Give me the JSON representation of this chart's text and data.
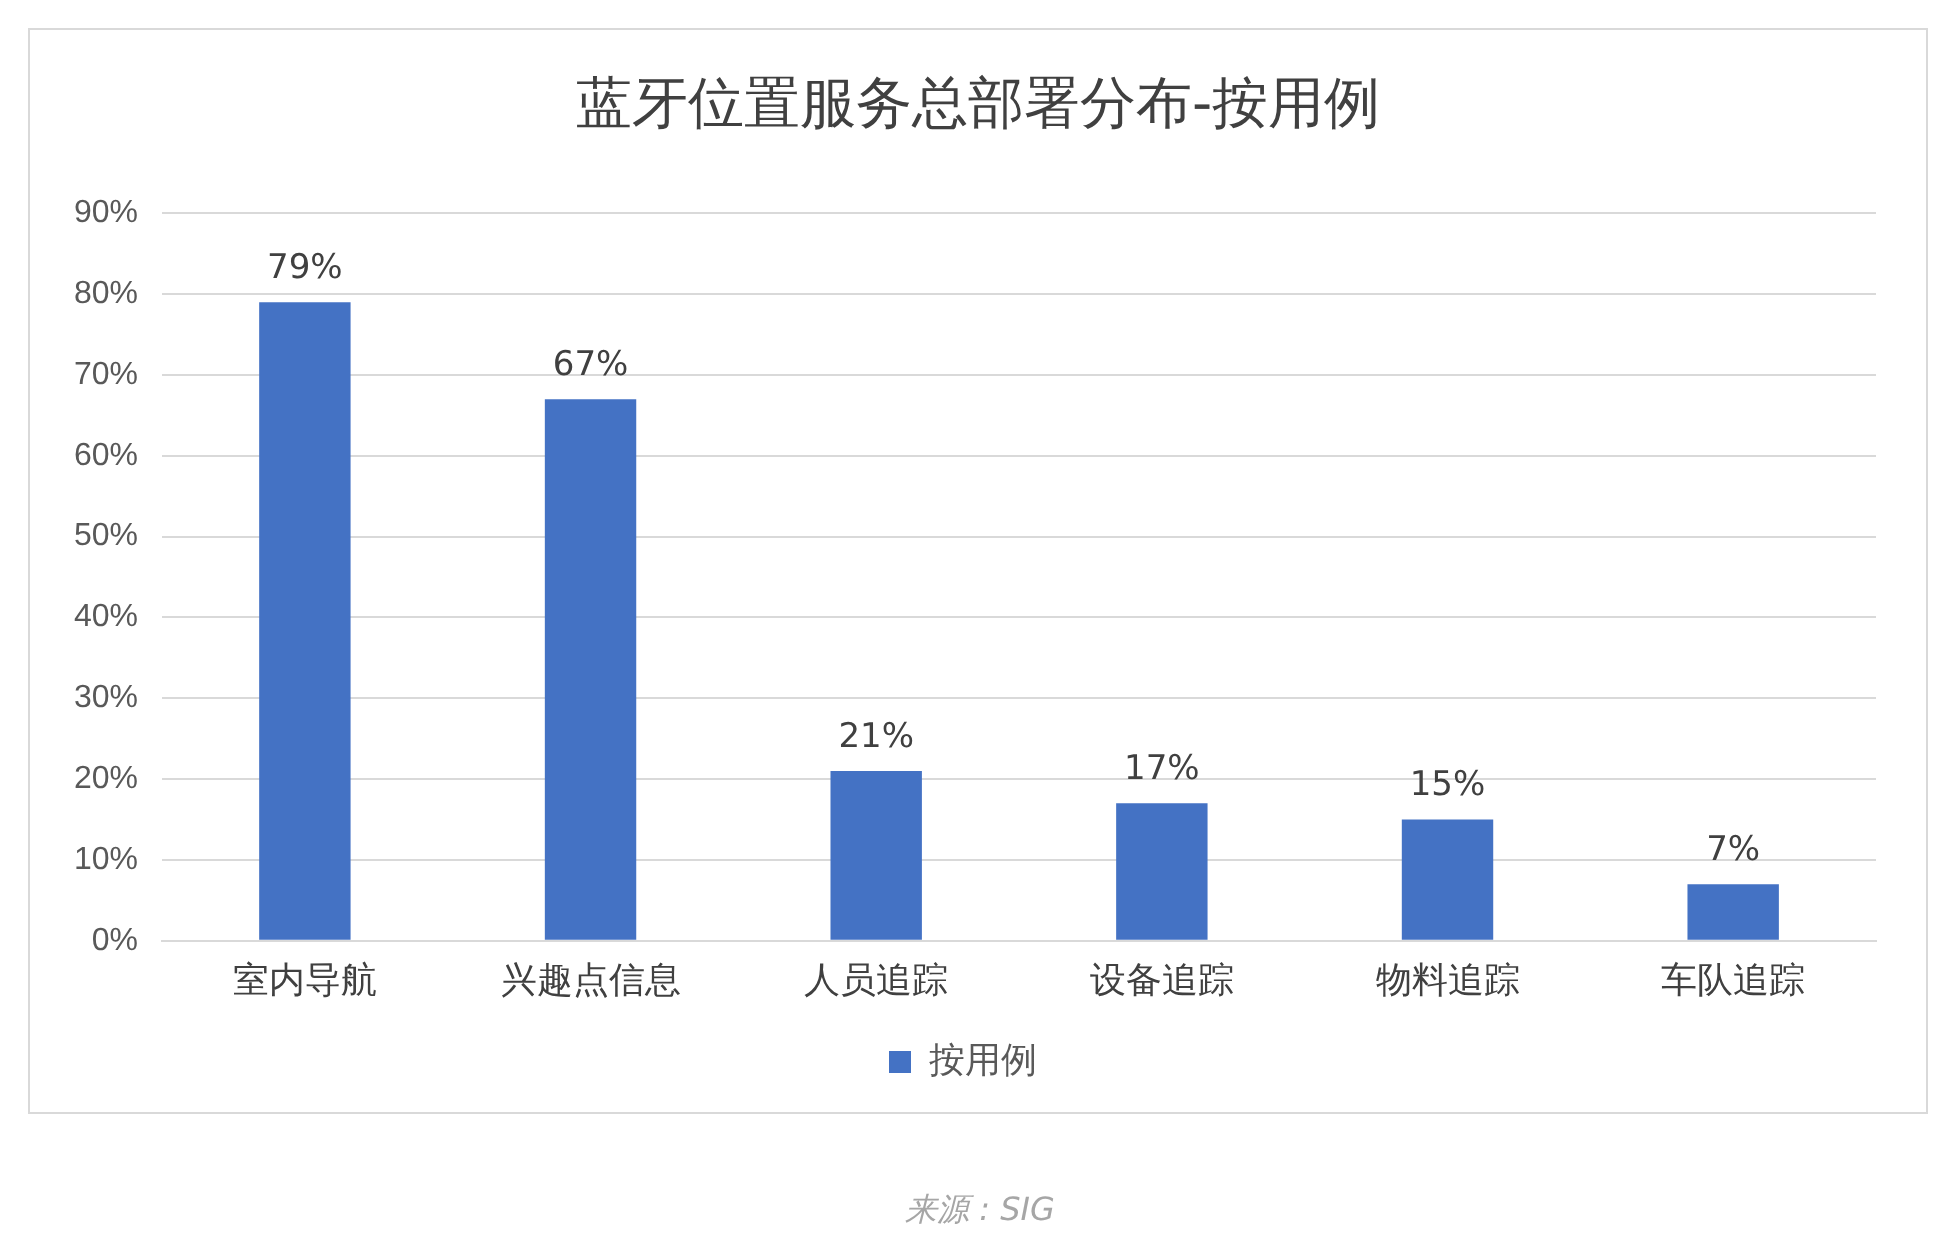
{
  "chart_data": {
    "type": "bar",
    "title": "蓝牙位置服务总部署分布-按用例",
    "categories": [
      "室内导航",
      "兴趣点信息",
      "人员追踪",
      "设备追踪",
      "物料追踪",
      "车队追踪"
    ],
    "series": [
      {
        "name": "按用例",
        "color": "#4472c4",
        "values": [
          79,
          67,
          21,
          17,
          15,
          7
        ],
        "value_labels": [
          "79%",
          "67%",
          "21%",
          "17%",
          "15%",
          "7%"
        ]
      }
    ],
    "ylim": [
      0,
      90
    ],
    "yticks": [
      {
        "value": 0,
        "label": "0%"
      },
      {
        "value": 10,
        "label": "10%"
      },
      {
        "value": 20,
        "label": "20%"
      },
      {
        "value": 30,
        "label": "30%"
      },
      {
        "value": 40,
        "label": "40%"
      },
      {
        "value": 50,
        "label": "50%"
      },
      {
        "value": 60,
        "label": "60%"
      },
      {
        "value": 70,
        "label": "70%"
      },
      {
        "value": 80,
        "label": "80%"
      },
      {
        "value": 90,
        "label": "90%"
      }
    ],
    "grid": "y",
    "legend": "bottom",
    "annotations": [
      "来源 : SIG"
    ]
  }
}
